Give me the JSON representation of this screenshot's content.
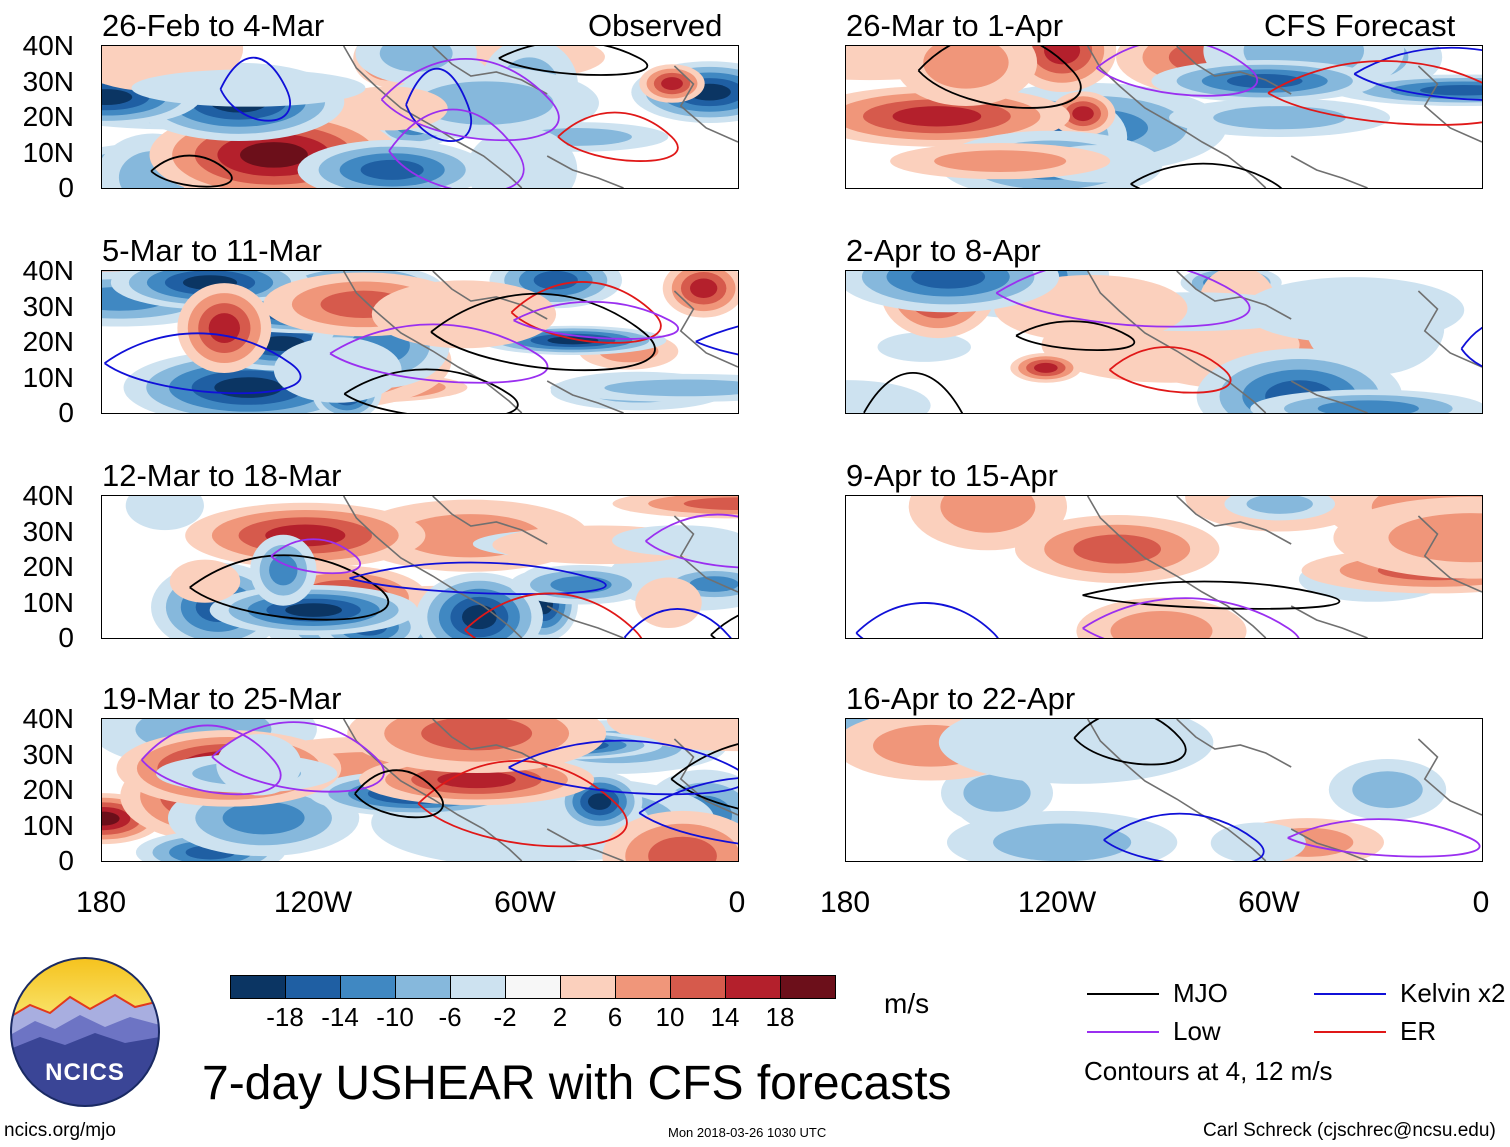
{
  "header": {
    "observed_label": "Observed",
    "forecast_label": "CFS Forecast"
  },
  "panels": [
    {
      "title": "26-Feb to 4-Mar"
    },
    {
      "title": "5-Mar to 11-Mar"
    },
    {
      "title": "12-Mar to 18-Mar"
    },
    {
      "title": "19-Mar to 25-Mar"
    },
    {
      "title": "26-Mar to 1-Apr"
    },
    {
      "title": "2-Apr to 8-Apr"
    },
    {
      "title": "9-Apr to 15-Apr"
    },
    {
      "title": "16-Apr to 22-Apr"
    }
  ],
  "axes": {
    "y_ticks": [
      "40N",
      "30N",
      "20N",
      "10N",
      "0"
    ],
    "x_ticks": [
      "180",
      "120W",
      "60W",
      "0"
    ]
  },
  "colorbar": {
    "labels": [
      "-18",
      "-14",
      "-10",
      "-6",
      "-2",
      "2",
      "6",
      "10",
      "14",
      "18"
    ],
    "units": "m/s",
    "colors": [
      "#0b3563",
      "#1f5fa3",
      "#4088c2",
      "#86b8dc",
      "#cde2f0",
      "#f7f7f7",
      "#fbd0bd",
      "#f0967a",
      "#d65a4c",
      "#b4202c",
      "#6c0f1a"
    ]
  },
  "legend": {
    "items": [
      {
        "label": "MJO",
        "color": "#000000"
      },
      {
        "label": "Kelvin x2",
        "color": "#1010d8"
      },
      {
        "label": "Low",
        "color": "#9a2ff0"
      },
      {
        "label": "ER",
        "color": "#e01818"
      }
    ],
    "note": "Contours at 4, 12 m/s"
  },
  "main_title": "7-day USHEAR with CFS forecasts",
  "logo": {
    "text": "NCICS"
  },
  "footer": {
    "url": "ncics.org/mjo",
    "timestamp": "Mon 2018-03-26 1030 UTC",
    "credit": "Carl Schreck (cjschrec@ncsu.edu)"
  }
}
